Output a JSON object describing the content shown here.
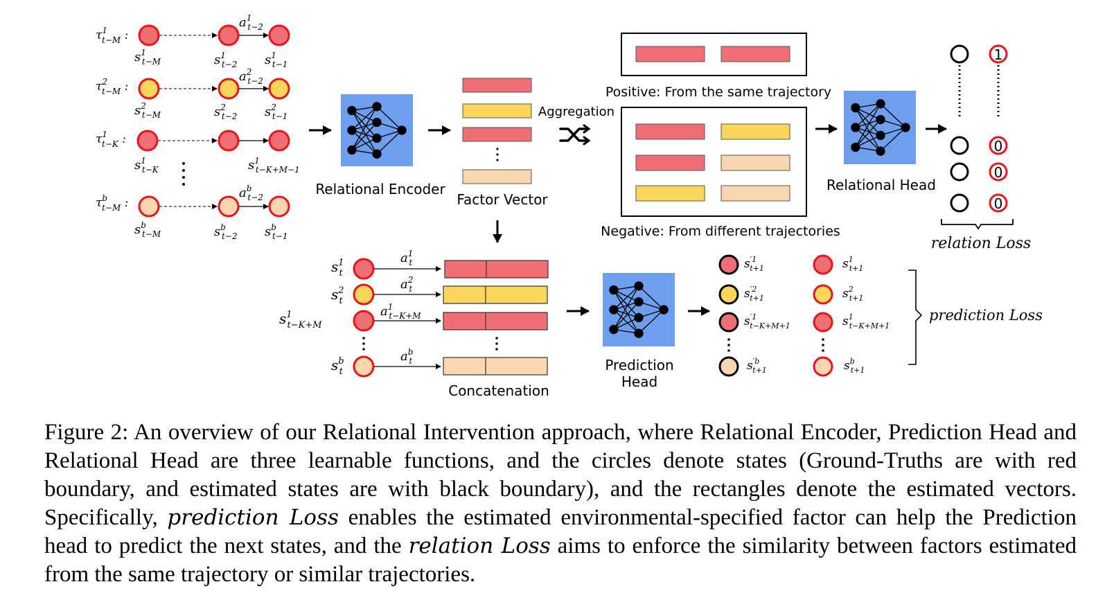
{
  "colors": {
    "red_fill": "#ef6f74",
    "yellow_fill": "#f9d659",
    "peach_fill": "#f9d6b0",
    "gt_border": "#e8141b",
    "est_border": "#000000",
    "net_blue": "#6e9fef"
  },
  "traj": [
    {
      "tau": "τ",
      "tau_sup": "1",
      "tau_sub": "t−M",
      "s0_sup": "1",
      "s0_sub": "t−M",
      "s1_sup": "1",
      "s1_sub": "t−2",
      "s2_sup": "1",
      "s2_sub": "t−1",
      "a_sup": "1",
      "a_sub": "t−2"
    },
    {
      "tau": "τ",
      "tau_sup": "2",
      "tau_sub": "t−M",
      "s0_sup": "2",
      "s0_sub": "t−M",
      "s1_sup": "2",
      "s1_sub": "t−2",
      "s2_sup": "2",
      "s2_sub": "t−1",
      "a_sup": "2",
      "a_sub": "t−2"
    },
    {
      "tau": "τ",
      "tau_sup": "1",
      "tau_sub": "t−K",
      "s0_sup": "1",
      "s0_sub": "t−K",
      "s2_sup": "1",
      "s2_sub": "t−K+M−1"
    },
    {
      "tau": "τ",
      "tau_sup": "b",
      "tau_sub": "t−M",
      "s0_sup": "b",
      "s0_sub": "t−M",
      "s1_sup": "b",
      "s1_sub": "t−2",
      "s2_sup": "b",
      "s2_sub": "t−1",
      "a_sup": "b",
      "a_sub": "t−2"
    }
  ],
  "labels": {
    "relational_encoder": "Relational Encoder",
    "factor_vector": "Factor Vector",
    "aggregation": "Aggregation",
    "positive": "Positive: From the same trajectory",
    "negative": "Negative: From different trajectories",
    "relational_head": "Relational Head",
    "relation_loss": "relation Loss",
    "concatenation": "Concatenation",
    "prediction_head_1": "Prediction",
    "prediction_head_2": "Head",
    "prediction_loss": "prediction Loss"
  },
  "relation_outputs": [
    "1",
    "0",
    "0",
    "0"
  ],
  "concat_rows": [
    {
      "s_sup": "1",
      "s_sub": "t",
      "a_sup": "1",
      "a_sub": "t"
    },
    {
      "s_sup": "2",
      "s_sub": "t",
      "a_sup": "2",
      "a_sub": "t"
    },
    {
      "s_sup": "1",
      "s_sub": "t−K+M",
      "a_sup": "1",
      "a_sub": "t−K+M"
    },
    {
      "s_sup": "b",
      "s_sub": "t",
      "a_sup": "b",
      "a_sub": "t"
    }
  ],
  "pred_rows": [
    {
      "est_sup": "′1",
      "est_sub": "t+1",
      "gt_sup": "1",
      "gt_sub": "t+1"
    },
    {
      "est_sup": "′2",
      "est_sub": "t+1",
      "gt_sup": "2",
      "gt_sub": "t+1"
    },
    {
      "est_sup": "′1",
      "est_sub": "t−K+M+1",
      "gt_sup": "1",
      "gt_sub": "t−K+M+1"
    },
    {
      "est_sup": "′b",
      "est_sub": "t+1",
      "gt_sup": "b",
      "gt_sub": "t+1"
    }
  ],
  "caption": {
    "part1": "Figure 2: An overview of our Relational Intervention approach, where Relational Encoder, Prediction Head and Relational Head are three learnable functions, and the circles denote states (Ground-Truths are with red boundary, and estimated states are with black boundary), and the rectangles denote the estimated vectors. Specifically, ",
    "em1": "prediction Loss",
    "part2": " enables the estimated environmental-specified factor can help the Prediction head to predict the next states, and the ",
    "em2": "relation Loss",
    "part3": " aims to enforce the similarity between factors estimated from the same trajectory or similar trajectories."
  }
}
